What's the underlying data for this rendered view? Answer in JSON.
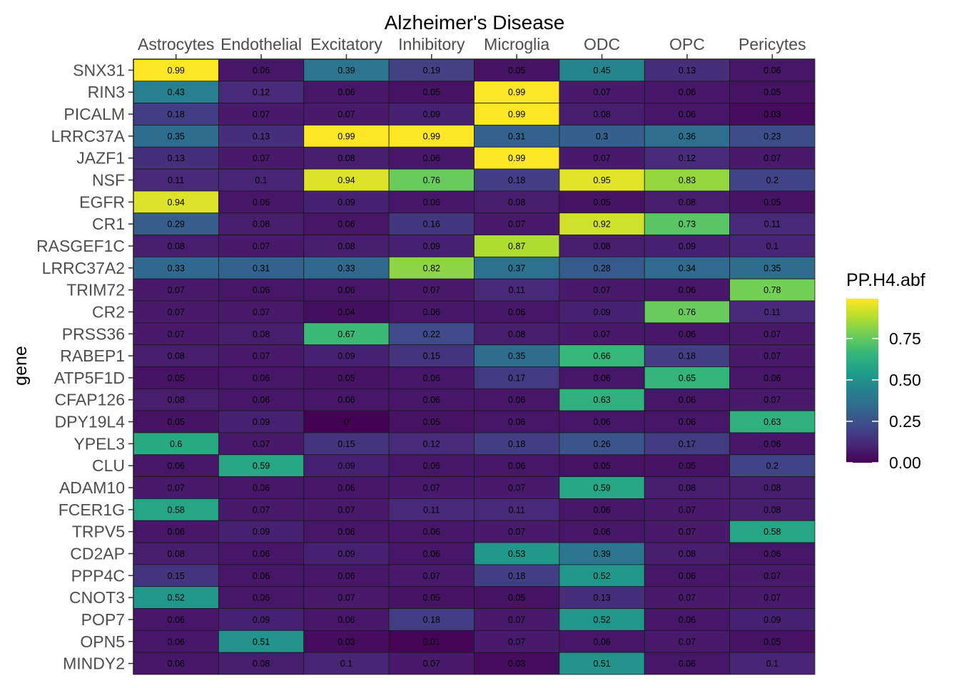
{
  "chart_data": {
    "type": "heatmap",
    "title": "Alzheimer's Disease",
    "ylabel": "gene",
    "xlabel": "",
    "x_axis_position": "top",
    "columns": [
      "Astrocytes",
      "Endothelial",
      "Excitatory",
      "Inhibitory",
      "Microglia",
      "ODC",
      "OPC",
      "Pericytes"
    ],
    "rows": [
      "SNX31",
      "RIN3",
      "PICALM",
      "LRRC37A",
      "JAZF1",
      "NSF",
      "EGFR",
      "CR1",
      "RASGEF1C",
      "LRRC37A2",
      "TRIM72",
      "CR2",
      "PRSS36",
      "RABEP1",
      "ATP5F1D",
      "CFAP126",
      "DPY19L4",
      "YPEL3",
      "CLU",
      "ADAM10",
      "FCER1G",
      "TRPV5",
      "CD2AP",
      "PPP4C",
      "CNOT3",
      "POP7",
      "OPN5",
      "MINDY2"
    ],
    "values": [
      [
        0.99,
        0.06,
        0.39,
        0.19,
        0.05,
        0.45,
        0.13,
        0.06
      ],
      [
        0.43,
        0.12,
        0.06,
        0.05,
        0.99,
        0.07,
        0.06,
        0.05
      ],
      [
        0.18,
        0.07,
        0.07,
        0.09,
        0.99,
        0.08,
        0.06,
        0.03
      ],
      [
        0.35,
        0.13,
        0.99,
        0.99,
        0.31,
        0.3,
        0.36,
        0.23
      ],
      [
        0.13,
        0.07,
        0.08,
        0.06,
        0.99,
        0.07,
        0.12,
        0.07
      ],
      [
        0.11,
        0.1,
        0.94,
        0.76,
        0.18,
        0.95,
        0.83,
        0.2
      ],
      [
        0.94,
        0.06,
        0.09,
        0.06,
        0.08,
        0.05,
        0.08,
        0.05
      ],
      [
        0.29,
        0.08,
        0.06,
        0.16,
        0.07,
        0.92,
        0.73,
        0.11
      ],
      [
        0.08,
        0.07,
        0.08,
        0.09,
        0.87,
        0.08,
        0.09,
        0.1
      ],
      [
        0.33,
        0.31,
        0.33,
        0.82,
        0.37,
        0.28,
        0.34,
        0.35
      ],
      [
        0.07,
        0.06,
        0.06,
        0.07,
        0.11,
        0.07,
        0.06,
        0.78
      ],
      [
        0.07,
        0.07,
        0.04,
        0.06,
        0.06,
        0.09,
        0.76,
        0.11
      ],
      [
        0.07,
        0.08,
        0.67,
        0.22,
        0.08,
        0.07,
        0.06,
        0.07
      ],
      [
        0.08,
        0.07,
        0.09,
        0.15,
        0.35,
        0.66,
        0.18,
        0.07
      ],
      [
        0.05,
        0.06,
        0.05,
        0.06,
        0.17,
        0.06,
        0.65,
        0.06
      ],
      [
        0.08,
        0.06,
        0.06,
        0.06,
        0.06,
        0.63,
        0.06,
        0.07
      ],
      [
        0.05,
        0.09,
        0,
        0.05,
        0.06,
        0.06,
        0.06,
        0.63
      ],
      [
        0.6,
        0.07,
        0.15,
        0.12,
        0.18,
        0.26,
        0.17,
        0.06
      ],
      [
        0.06,
        0.59,
        0.09,
        0.06,
        0.06,
        0.05,
        0.05,
        0.2
      ],
      [
        0.07,
        0.06,
        0.06,
        0.07,
        0.07,
        0.59,
        0.08,
        0.08
      ],
      [
        0.58,
        0.07,
        0.07,
        0.11,
        0.11,
        0.06,
        0.07,
        0.08
      ],
      [
        0.06,
        0.09,
        0.06,
        0.06,
        0.07,
        0.06,
        0.07,
        0.58
      ],
      [
        0.08,
        0.06,
        0.09,
        0.06,
        0.53,
        0.39,
        0.08,
        0.06
      ],
      [
        0.15,
        0.06,
        0.06,
        0.07,
        0.18,
        0.52,
        0.06,
        0.07
      ],
      [
        0.52,
        0.06,
        0.07,
        0.05,
        0.05,
        0.13,
        0.07,
        0.07
      ],
      [
        0.06,
        0.09,
        0.06,
        0.18,
        0.07,
        0.52,
        0.06,
        0.09
      ],
      [
        0.06,
        0.51,
        0.03,
        0.01,
        0.07,
        0.06,
        0.07,
        0.05
      ],
      [
        0.06,
        0.08,
        0.1,
        0.07,
        0.03,
        0.51,
        0.06,
        0.1
      ]
    ],
    "legend": {
      "title": "PP.H4.abf",
      "ticks": [
        "0.00",
        "0.25",
        "0.50",
        "0.75"
      ],
      "tick_values": [
        0,
        0.25,
        0.5,
        0.75
      ],
      "range": [
        0,
        0.99
      ],
      "colormap": "viridis",
      "placement": "right"
    },
    "grid": false
  }
}
